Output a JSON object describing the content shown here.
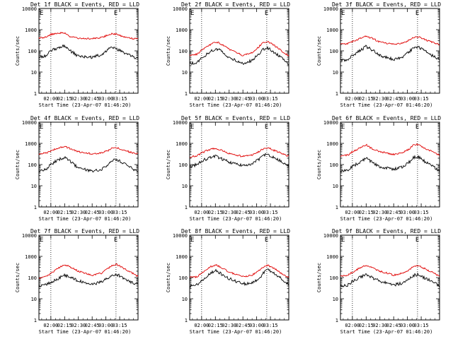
{
  "figure": {
    "start_time_label": "Start Time (23-Apr-07 01:46:20)",
    "ylabel": "Counts/sec",
    "x_tick_labels": [
      "02:00",
      "02:15",
      "02:30",
      "02:45",
      "03:00",
      "03:15"
    ],
    "y_tick_labels": [
      "1",
      "10",
      "100",
      "1000",
      "10000"
    ],
    "marker_labels": [
      "E",
      "E"
    ],
    "colors": {
      "events": "#000000",
      "lld": "#e00000",
      "axes": "#000000",
      "background": "#ffffff"
    }
  },
  "chart_data": [
    {
      "type": "line",
      "title": "Det 1f BLACK = Events, RED = LLD",
      "xlabel": "Start Time (23-Apr-07 01:46:20)",
      "ylabel": "Counts/sec",
      "yscale": "log",
      "ylim": [
        1,
        10000
      ],
      "xlim_minutes": [
        -13,
        95
      ],
      "x_ticks_minutes": [
        0,
        15,
        30,
        45,
        60,
        75
      ],
      "x_tick_labels": [
        "02:00",
        "02:15",
        "02:30",
        "02:45",
        "03:00",
        "03:15"
      ],
      "markers_minutes": [
        0,
        71
      ],
      "series": [
        {
          "name": "Events",
          "color": "#000000",
          "x_minutes": [
            -13,
            -5,
            0,
            8,
            15,
            20,
            30,
            45,
            55,
            62,
            67,
            72,
            80,
            90,
            95
          ],
          "values": [
            50,
            60,
            100,
            140,
            180,
            110,
            55,
            50,
            65,
            110,
            150,
            120,
            80,
            50,
            45
          ]
        },
        {
          "name": "LLD",
          "color": "#e00000",
          "x_minutes": [
            -13,
            -5,
            0,
            8,
            15,
            20,
            30,
            45,
            55,
            62,
            67,
            72,
            80,
            90,
            95
          ],
          "values": [
            400,
            450,
            600,
            700,
            720,
            480,
            400,
            380,
            420,
            550,
            650,
            600,
            450,
            380,
            370
          ]
        }
      ]
    },
    {
      "type": "line",
      "title": "Det 2f BLACK = Events, RED = LLD",
      "xlabel": "Start Time (23-Apr-07 01:46:20)",
      "ylabel": "Counts/sec",
      "yscale": "log",
      "ylim": [
        1,
        10000
      ],
      "xlim_minutes": [
        -13,
        95
      ],
      "x_ticks_minutes": [
        0,
        15,
        30,
        45,
        60,
        75
      ],
      "x_tick_labels": [
        "02:00",
        "02:15",
        "02:30",
        "02:45",
        "03:00",
        "03:15"
      ],
      "markers_minutes": [
        0,
        71
      ],
      "series": [
        {
          "name": "Events",
          "color": "#000000",
          "x_minutes": [
            -13,
            -5,
            0,
            8,
            15,
            20,
            30,
            45,
            55,
            62,
            67,
            72,
            80,
            90,
            95
          ],
          "values": [
            25,
            28,
            45,
            80,
            130,
            110,
            50,
            25,
            35,
            70,
            120,
            140,
            80,
            35,
            22
          ]
        },
        {
          "name": "LLD",
          "color": "#e00000",
          "x_minutes": [
            -13,
            -5,
            0,
            8,
            15,
            20,
            30,
            45,
            55,
            62,
            67,
            72,
            80,
            90,
            95
          ],
          "values": [
            60,
            70,
            110,
            180,
            270,
            230,
            120,
            60,
            80,
            150,
            250,
            280,
            170,
            80,
            60
          ]
        }
      ]
    },
    {
      "type": "line",
      "title": "Det 3f BLACK = Events, RED = LLD",
      "xlabel": "Start Time (23-Apr-07 01:46:20)",
      "ylabel": "Counts/sec",
      "yscale": "log",
      "ylim": [
        1,
        10000
      ],
      "xlim_minutes": [
        -13,
        95
      ],
      "x_ticks_minutes": [
        0,
        15,
        30,
        45,
        60,
        75
      ],
      "x_tick_labels": [
        "02:00",
        "02:15",
        "02:30",
        "02:45",
        "03:00",
        "03:15"
      ],
      "markers_minutes": [
        0,
        71
      ],
      "series": [
        {
          "name": "Events",
          "color": "#000000",
          "x_minutes": [
            -13,
            -5,
            0,
            8,
            15,
            20,
            30,
            45,
            55,
            62,
            67,
            72,
            80,
            90,
            95
          ],
          "values": [
            35,
            40,
            60,
            100,
            160,
            120,
            60,
            40,
            50,
            90,
            140,
            150,
            90,
            50,
            40
          ]
        },
        {
          "name": "LLD",
          "color": "#e00000",
          "x_minutes": [
            -13,
            -5,
            0,
            8,
            15,
            20,
            30,
            45,
            55,
            62,
            67,
            72,
            80,
            90,
            95
          ],
          "values": [
            200,
            220,
            280,
            380,
            480,
            420,
            260,
            200,
            230,
            320,
            430,
            460,
            330,
            230,
            200
          ]
        }
      ]
    },
    {
      "type": "line",
      "title": "Det 4f BLACK = Events, RED = LLD",
      "xlabel": "Start Time (23-Apr-07 01:46:20)",
      "ylabel": "Counts/sec",
      "yscale": "log",
      "ylim": [
        1,
        10000
      ],
      "xlim_minutes": [
        -13,
        95
      ],
      "x_ticks_minutes": [
        0,
        15,
        30,
        45,
        60,
        75
      ],
      "x_tick_labels": [
        "02:00",
        "02:15",
        "02:30",
        "02:45",
        "03:00",
        "03:15"
      ],
      "markers_minutes": [
        0,
        71
      ],
      "series": [
        {
          "name": "Events",
          "color": "#000000",
          "x_minutes": [
            -13,
            -5,
            0,
            8,
            15,
            20,
            30,
            45,
            55,
            62,
            67,
            72,
            80,
            90,
            95
          ],
          "values": [
            50,
            60,
            100,
            170,
            220,
            150,
            70,
            50,
            60,
            100,
            160,
            170,
            110,
            60,
            50
          ]
        },
        {
          "name": "LLD",
          "color": "#e00000",
          "x_minutes": [
            -13,
            -5,
            0,
            8,
            15,
            20,
            30,
            45,
            55,
            62,
            67,
            72,
            80,
            90,
            95
          ],
          "values": [
            320,
            350,
            450,
            600,
            700,
            580,
            400,
            320,
            350,
            450,
            600,
            620,
            470,
            350,
            320
          ]
        }
      ]
    },
    {
      "type": "line",
      "title": "Det 5f BLACK = Events, RED = LLD",
      "xlabel": "Start Time (23-Apr-07 01:46:20)",
      "ylabel": "Counts/sec",
      "yscale": "log",
      "ylim": [
        1,
        10000
      ],
      "xlim_minutes": [
        -13,
        95
      ],
      "x_ticks_minutes": [
        0,
        15,
        30,
        45,
        60,
        75
      ],
      "x_tick_labels": [
        "02:00",
        "02:15",
        "02:30",
        "02:45",
        "03:00",
        "03:15"
      ],
      "markers_minutes": [
        0,
        71
      ],
      "series": [
        {
          "name": "Events",
          "color": "#000000",
          "x_minutes": [
            -13,
            -5,
            0,
            8,
            15,
            20,
            30,
            45,
            55,
            62,
            67,
            72,
            80,
            90,
            95
          ],
          "values": [
            80,
            100,
            150,
            200,
            250,
            200,
            130,
            90,
            110,
            170,
            270,
            300,
            200,
            120,
            80
          ]
        },
        {
          "name": "LLD",
          "color": "#e00000",
          "x_minutes": [
            -13,
            -5,
            0,
            8,
            15,
            20,
            30,
            45,
            55,
            62,
            67,
            72,
            80,
            90,
            95
          ],
          "values": [
            230,
            260,
            350,
            500,
            600,
            500,
            330,
            240,
            280,
            400,
            560,
            620,
            450,
            300,
            250
          ]
        }
      ]
    },
    {
      "type": "line",
      "title": "Det 6f BLACK = Events, RED = LLD",
      "xlabel": "Start Time (23-Apr-07 01:46:20)",
      "ylabel": "Counts/sec",
      "yscale": "log",
      "ylim": [
        1,
        10000
      ],
      "xlim_minutes": [
        -13,
        95
      ],
      "x_ticks_minutes": [
        0,
        15,
        30,
        45,
        60,
        75
      ],
      "x_tick_labels": [
        "02:00",
        "02:15",
        "02:30",
        "02:45",
        "03:00",
        "03:15"
      ],
      "markers_minutes": [
        0,
        71
      ],
      "series": [
        {
          "name": "Events",
          "color": "#000000",
          "x_minutes": [
            -13,
            -5,
            0,
            8,
            15,
            20,
            30,
            45,
            55,
            62,
            67,
            72,
            80,
            90,
            95
          ],
          "values": [
            45,
            55,
            80,
            130,
            200,
            140,
            80,
            60,
            80,
            130,
            220,
            230,
            130,
            70,
            50
          ]
        },
        {
          "name": "LLD",
          "color": "#e00000",
          "x_minutes": [
            -13,
            -5,
            0,
            8,
            15,
            20,
            30,
            45,
            55,
            62,
            67,
            72,
            80,
            90,
            95
          ],
          "values": [
            250,
            280,
            400,
            600,
            850,
            600,
            400,
            300,
            380,
            550,
            850,
            900,
            550,
            350,
            280
          ]
        }
      ]
    },
    {
      "type": "line",
      "title": "Det 7f BLACK = Events, RED = LLD",
      "xlabel": "Start Time (23-Apr-07 01:46:20)",
      "ylabel": "Counts/sec",
      "yscale": "log",
      "ylim": [
        1,
        10000
      ],
      "xlim_minutes": [
        -13,
        95
      ],
      "x_ticks_minutes": [
        0,
        15,
        30,
        45,
        60,
        75
      ],
      "x_tick_labels": [
        "02:00",
        "02:15",
        "02:30",
        "02:45",
        "03:00",
        "03:15"
      ],
      "markers_minutes": [
        0,
        71
      ],
      "series": [
        {
          "name": "Events",
          "color": "#000000",
          "x_minutes": [
            -13,
            -5,
            0,
            8,
            15,
            20,
            30,
            45,
            55,
            62,
            67,
            72,
            80,
            90,
            95
          ],
          "values": [
            40,
            45,
            60,
            90,
            130,
            110,
            70,
            50,
            60,
            90,
            130,
            140,
            90,
            55,
            45
          ]
        },
        {
          "name": "LLD",
          "color": "#e00000",
          "x_minutes": [
            -13,
            -5,
            0,
            8,
            15,
            20,
            30,
            45,
            55,
            62,
            67,
            72,
            80,
            90,
            95
          ],
          "values": [
            100,
            110,
            160,
            280,
            400,
            340,
            200,
            130,
            160,
            260,
            380,
            420,
            260,
            150,
            110
          ]
        }
      ]
    },
    {
      "type": "line",
      "title": "Det 8f BLACK = Events, RED = LLD",
      "xlabel": "Start Time (23-Apr-07 01:46:20)",
      "ylabel": "Counts/sec",
      "yscale": "log",
      "ylim": [
        1,
        10000
      ],
      "xlim_minutes": [
        -13,
        95
      ],
      "x_ticks_minutes": [
        0,
        15,
        30,
        45,
        60,
        75
      ],
      "x_tick_labels": [
        "02:00",
        "02:15",
        "02:30",
        "02:45",
        "03:00",
        "03:15"
      ],
      "markers_minutes": [
        0,
        71
      ],
      "series": [
        {
          "name": "Events",
          "color": "#000000",
          "x_minutes": [
            -13,
            -5,
            0,
            8,
            15,
            20,
            30,
            45,
            55,
            62,
            67,
            72,
            80,
            90,
            95
          ],
          "values": [
            40,
            45,
            70,
            150,
            220,
            160,
            90,
            50,
            55,
            80,
            160,
            230,
            150,
            70,
            45
          ]
        },
        {
          "name": "LLD",
          "color": "#e00000",
          "x_minutes": [
            -13,
            -5,
            0,
            8,
            15,
            20,
            30,
            45,
            55,
            62,
            67,
            72,
            80,
            90,
            95
          ],
          "values": [
            100,
            110,
            160,
            300,
            400,
            320,
            180,
            110,
            130,
            200,
            300,
            380,
            250,
            130,
            100
          ]
        }
      ]
    },
    {
      "type": "line",
      "title": "Det 9f BLACK = Events, RED = LLD",
      "xlabel": "Start Time (23-Apr-07 01:46:20)",
      "ylabel": "Counts/sec",
      "yscale": "log",
      "ylim": [
        1,
        10000
      ],
      "xlim_minutes": [
        -13,
        95
      ],
      "x_ticks_minutes": [
        0,
        15,
        30,
        45,
        60,
        75
      ],
      "x_tick_labels": [
        "02:00",
        "02:15",
        "02:30",
        "02:45",
        "03:00",
        "03:15"
      ],
      "markers_minutes": [
        0,
        71
      ],
      "series": [
        {
          "name": "Events",
          "color": "#000000",
          "x_minutes": [
            -13,
            -5,
            0,
            8,
            15,
            20,
            30,
            45,
            55,
            62,
            67,
            72,
            80,
            90,
            95
          ],
          "values": [
            40,
            45,
            65,
            100,
            140,
            110,
            65,
            45,
            55,
            90,
            130,
            140,
            90,
            55,
            40
          ]
        },
        {
          "name": "LLD",
          "color": "#e00000",
          "x_minutes": [
            -13,
            -5,
            0,
            8,
            15,
            20,
            30,
            45,
            55,
            62,
            67,
            72,
            80,
            90,
            95
          ],
          "values": [
            120,
            130,
            180,
            280,
            380,
            320,
            200,
            130,
            160,
            240,
            350,
            380,
            250,
            150,
            120
          ]
        }
      ]
    }
  ]
}
